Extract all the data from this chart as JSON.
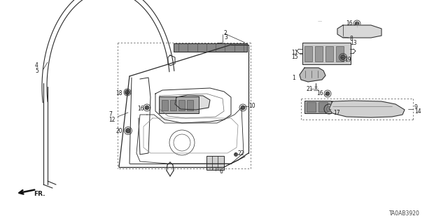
{
  "background_color": "#ffffff",
  "line_color": "#2a2a2a",
  "diagram_code": "TA0AB3920",
  "label_color": "#1a1a1a",
  "dashed_color": "#555555"
}
